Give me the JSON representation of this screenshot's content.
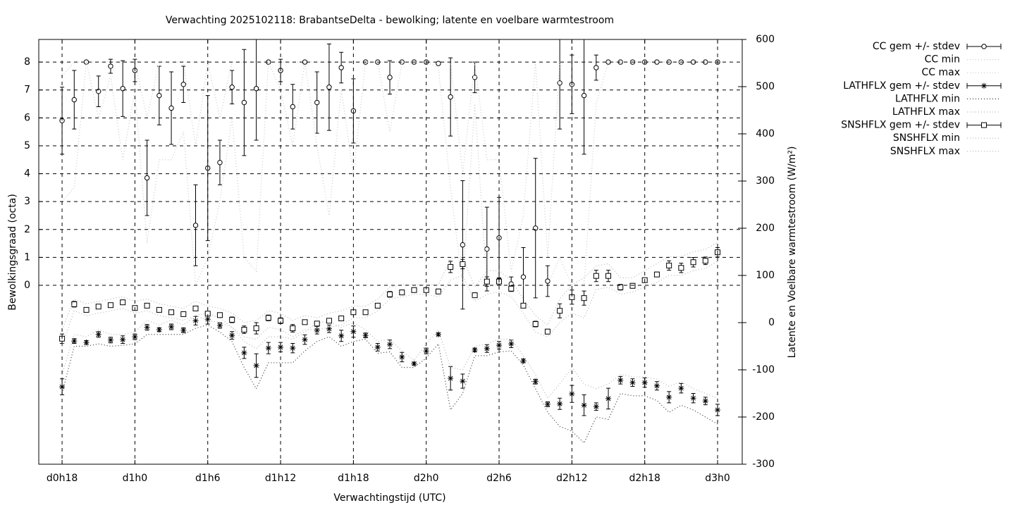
{
  "chart_data": {
    "type": "errorbar-line",
    "title": "Verwachting 2025102118: BrabantseDelta - bewolking; latente en voelbare warmtestroom",
    "x_label": "Verwachtingstijd (UTC)",
    "y_label": "Bewolkingsgraad (octa)",
    "y2_label": "Latente en Voelbare warmtestroom (W/m²)",
    "x": [
      18,
      19,
      20,
      21,
      22,
      23,
      24,
      25,
      26,
      27,
      28,
      29,
      30,
      31,
      32,
      33,
      34,
      35,
      36,
      37,
      38,
      39,
      40,
      41,
      42,
      43,
      44,
      45,
      46,
      47,
      48,
      49,
      50,
      51,
      52,
      53,
      54,
      55,
      56,
      57,
      58,
      59,
      60,
      61,
      62,
      63,
      64,
      65,
      66,
      67,
      68,
      69,
      70,
      71,
      72
    ],
    "xlim": [
      16.08,
      74.03
    ],
    "xticks": [
      {
        "value": 18,
        "label": "d0h18"
      },
      {
        "value": 24,
        "label": "d1h0"
      },
      {
        "value": 30,
        "label": "d1h6"
      },
      {
        "value": 36,
        "label": "d1h12"
      },
      {
        "value": 42,
        "label": "d1h18"
      },
      {
        "value": 48,
        "label": "d2h0"
      },
      {
        "value": 54,
        "label": "d2h6"
      },
      {
        "value": 60,
        "label": "d2h12"
      },
      {
        "value": 66,
        "label": "d2h18"
      },
      {
        "value": 72,
        "label": "d3h0"
      }
    ],
    "ylim": [
      -6.41,
      8.81
    ],
    "yticks": [
      0,
      1,
      2,
      3,
      4,
      5,
      6,
      7,
      8
    ],
    "y2lim": [
      -300,
      600
    ],
    "y2ticks": [
      -300,
      -200,
      -100,
      0,
      100,
      200,
      300,
      400,
      500,
      600
    ],
    "grid": true,
    "legend": "right",
    "series": [
      {
        "name": "CC gem +/- stdev",
        "style": "errorbar",
        "marker": "circle",
        "color": "#000000",
        "values": [
          5.9,
          6.65,
          8,
          6.95,
          7.85,
          7.05,
          7.7,
          3.85,
          6.8,
          6.35,
          7.2,
          2.15,
          4.2,
          4.4,
          7.1,
          6.55,
          7.05,
          8,
          7.7,
          6.4,
          8,
          6.55,
          7.1,
          7.8,
          6.25,
          8,
          8,
          7.45,
          8,
          8,
          8,
          7.95,
          6.75,
          1.45,
          7.45,
          1.3,
          1.7,
          0.05,
          0.3,
          2.05,
          0.15,
          7.25,
          7.2,
          6.8,
          7.8,
          8,
          8,
          8,
          8,
          8,
          8,
          8,
          8,
          8,
          8
        ],
        "errors": [
          1.2,
          1.05,
          0.05,
          0.55,
          0.25,
          1.0,
          0.4,
          1.35,
          1.05,
          1.3,
          0.65,
          1.45,
          2.6,
          0.8,
          0.6,
          1.9,
          1.85,
          0.05,
          0.4,
          0.8,
          0,
          1.1,
          1.55,
          0.55,
          1.15,
          0,
          0,
          0.6,
          0,
          0,
          0,
          0.05,
          1.4,
          2.3,
          0.55,
          1.5,
          1.45,
          0.25,
          1.05,
          2.5,
          0.55,
          1.65,
          1.05,
          2.1,
          0.45,
          0,
          0,
          0,
          0,
          0,
          0,
          0,
          0,
          0,
          0
        ]
      },
      {
        "name": "CC min",
        "style": "dotted",
        "color": "#c8c8c8",
        "values": [
          3,
          3.5,
          8,
          6,
          7.5,
          4.5,
          7,
          1.5,
          4.5,
          4.5,
          5.5,
          0,
          1,
          3,
          6,
          1,
          0.5,
          8,
          7,
          5,
          8,
          5,
          2.5,
          7,
          4,
          8,
          8,
          5.5,
          8,
          8,
          8,
          7.8,
          3.5,
          0,
          6.5,
          0,
          0,
          0,
          0,
          0,
          0,
          1,
          0,
          0,
          6.5,
          8,
          8,
          8,
          8,
          8,
          8,
          8,
          8,
          8,
          8
        ]
      },
      {
        "name": "CC max",
        "style": "dotted",
        "color": "#c8c8c8",
        "values": [
          7.5,
          8,
          8,
          8,
          8,
          8,
          8,
          6,
          8,
          8,
          8,
          5,
          8,
          6,
          8,
          8,
          8,
          8,
          8,
          8,
          8,
          8,
          8,
          8,
          8,
          8,
          8,
          8,
          8,
          8,
          8,
          8,
          8,
          4,
          8,
          4.5,
          4.5,
          0.5,
          2.5,
          8,
          1,
          8,
          8,
          8,
          8,
          8,
          8,
          8,
          8,
          8,
          8,
          8,
          8,
          8,
          8
        ]
      },
      {
        "name": "LATHFLX gem +/- stdev",
        "style": "errorbar",
        "marker": "star",
        "color": "#000000",
        "axis": "y2",
        "values": [
          -136,
          -39,
          -42,
          -25,
          -37,
          -36,
          -30,
          -10,
          -15,
          -9,
          -16,
          4,
          7,
          -6,
          -27,
          -64,
          -91,
          -54,
          -52,
          -54,
          -36,
          -16,
          -13,
          -28,
          -19,
          -27,
          -52,
          -46,
          -73,
          -87,
          -60,
          -25,
          -118,
          -124,
          -58,
          -55,
          -48,
          -45,
          -81,
          -125,
          -173,
          -172,
          -151,
          -175,
          -178,
          -161,
          -122,
          -127,
          -127,
          -134,
          -158,
          -139,
          -160,
          -166,
          -185
        ],
        "errors": [
          17,
          5,
          4,
          6,
          6,
          8,
          6,
          6,
          4,
          6,
          5,
          9,
          10,
          6,
          8,
          12,
          25,
          12,
          10,
          10,
          10,
          8,
          8,
          12,
          12,
          5,
          8,
          9,
          10,
          3,
          6,
          3,
          25,
          15,
          4,
          8,
          8,
          8,
          4,
          5,
          5,
          12,
          18,
          22,
          8,
          22,
          8,
          8,
          10,
          9,
          12,
          10,
          10,
          8,
          12
        ]
      },
      {
        "name": "LATHFLX min",
        "style": "dotted",
        "color": "#333333",
        "axis": "y2",
        "values": [
          -150,
          -50,
          -50,
          -45,
          -50,
          -48,
          -45,
          -25,
          -25,
          -25,
          -25,
          -12,
          -5,
          -20,
          -40,
          -95,
          -140,
          -85,
          -85,
          -85,
          -60,
          -40,
          -30,
          -50,
          -40,
          -35,
          -65,
          -62,
          -95,
          -95,
          -75,
          -45,
          -185,
          -150,
          -70,
          -70,
          -62,
          -60,
          -90,
          -140,
          -190,
          -220,
          -230,
          -255,
          -200,
          -205,
          -150,
          -155,
          -155,
          -165,
          -190,
          -175,
          -185,
          -200,
          -215
        ]
      },
      {
        "name": "LATHFLX max",
        "style": "dotted",
        "color": "#b4b4b4",
        "axis": "y2",
        "values": [
          -110,
          -25,
          -30,
          -15,
          -25,
          -25,
          -20,
          5,
          -5,
          5,
          -5,
          15,
          20,
          10,
          -10,
          -40,
          -55,
          -30,
          -30,
          -35,
          -20,
          0,
          2,
          -10,
          0,
          -15,
          -40,
          -35,
          -60,
          -80,
          -45,
          -15,
          -95,
          -100,
          -50,
          -45,
          -35,
          -35,
          -70,
          -110,
          -160,
          -130,
          -95,
          -130,
          -140,
          -130,
          -110,
          -115,
          -115,
          -120,
          -135,
          -125,
          -140,
          -150,
          -160
        ]
      },
      {
        "name": "SNSHFLX gem +/- stdev",
        "style": "errorbar",
        "marker": "square",
        "color": "#000000",
        "axis": "y2",
        "values": [
          -34,
          39,
          27,
          34,
          37,
          43,
          31,
          36,
          27,
          22,
          18,
          30,
          19,
          16,
          6,
          -15,
          -12,
          10,
          4,
          -12,
          1,
          -2,
          4,
          9,
          22,
          22,
          36,
          60,
          64,
          69,
          69,
          66,
          118,
          124,
          58,
          87,
          87,
          72,
          36,
          -3,
          -19,
          25,
          54,
          52,
          99,
          99,
          75,
          78,
          90,
          102,
          121,
          116,
          128,
          131,
          149
        ],
        "errors": [
          10,
          6,
          4,
          4,
          4,
          5,
          4,
          4,
          4,
          4,
          4,
          4,
          4,
          4,
          6,
          8,
          12,
          6,
          6,
          8,
          4,
          4,
          4,
          5,
          4,
          4,
          5,
          6,
          5,
          4,
          4,
          5,
          12,
          10,
          5,
          10,
          8,
          6,
          4,
          6,
          5,
          15,
          15,
          15,
          12,
          12,
          6,
          5,
          5,
          5,
          10,
          10,
          10,
          8,
          10
        ]
      },
      {
        "name": "SNSHFLX min",
        "style": "dotted",
        "color": "#b4b4b4",
        "axis": "y2",
        "values": [
          -50,
          25,
          15,
          20,
          25,
          30,
          20,
          25,
          15,
          10,
          5,
          15,
          5,
          0,
          -10,
          -30,
          -35,
          -10,
          -15,
          -30,
          -15,
          -15,
          -10,
          -5,
          10,
          10,
          25,
          50,
          55,
          60,
          60,
          55,
          90,
          100,
          45,
          60,
          65,
          55,
          20,
          -20,
          -30,
          0,
          20,
          10,
          70,
          75,
          60,
          65,
          75,
          85,
          100,
          100,
          110,
          115,
          130
        ]
      },
      {
        "name": "SNSHFLX max",
        "style": "dotted",
        "color": "#b4b4b4",
        "axis": "y2",
        "values": [
          -15,
          50,
          40,
          45,
          50,
          55,
          45,
          50,
          40,
          35,
          30,
          45,
          35,
          30,
          20,
          0,
          5,
          25,
          20,
          5,
          15,
          10,
          20,
          25,
          35,
          35,
          50,
          75,
          80,
          80,
          80,
          80,
          135,
          140,
          75,
          110,
          110,
          90,
          50,
          15,
          -5,
          50,
          80,
          95,
          120,
          125,
          95,
          95,
          110,
          125,
          140,
          140,
          150,
          155,
          170
        ]
      }
    ]
  }
}
